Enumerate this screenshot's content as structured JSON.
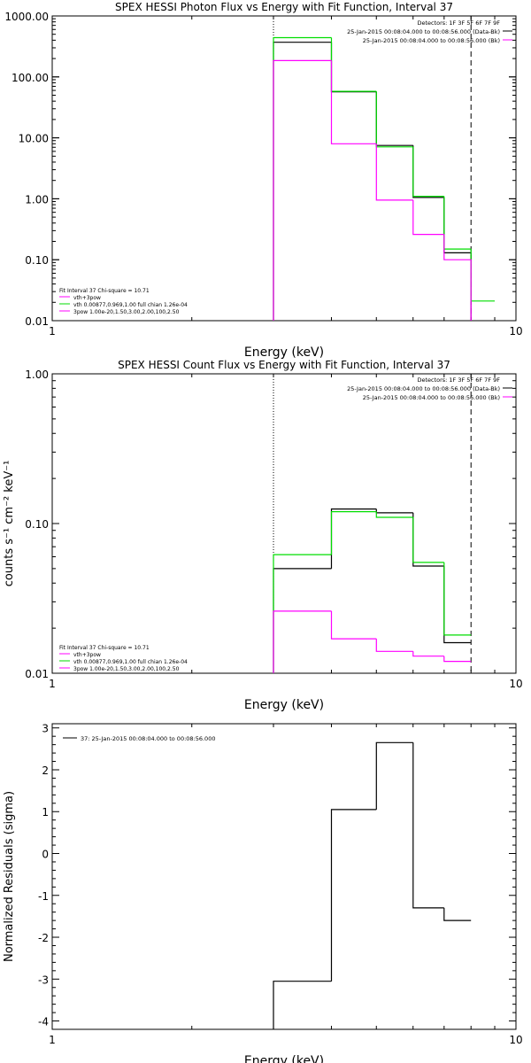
{
  "colors": {
    "data": "#000000",
    "fit_total": "#00dd00",
    "fit_component": "#ff00ff"
  },
  "chart_data": [
    {
      "type": "line",
      "title": "SPEX HESSI Photon Flux vs Energy with Fit Function, Interval 37",
      "xlabel": "Energy (keV)",
      "ylabel": "",
      "xscale": "log",
      "yscale": "log",
      "xlim": [
        1,
        10
      ],
      "ylim": [
        0.01,
        1000
      ],
      "xticks": [
        {
          "v": 1,
          "label": "1"
        },
        {
          "v": 10,
          "label": "10"
        }
      ],
      "yticks": [
        {
          "v": 0.01,
          "label": "0.01"
        },
        {
          "v": 0.1,
          "label": "0.10"
        },
        {
          "v": 1,
          "label": "1.00"
        },
        {
          "v": 10,
          "label": "10.00"
        },
        {
          "v": 100,
          "label": "100.00"
        },
        {
          "v": 1000,
          "label": "1000.00"
        }
      ],
      "vlines": [
        {
          "x": 3.0,
          "style": "dotted"
        },
        {
          "x": 8.0,
          "style": "dashed"
        }
      ],
      "legend_top": [
        {
          "text": "Detectors: 1F 3F 5F 6F 7F 9F",
          "color": ""
        },
        {
          "text": "25-Jan-2015 00:08:04.000 to 00:08:56.000 (Data-Bk)",
          "color": "#000000"
        },
        {
          "text": "25-Jan-2015 00:08:04.000 to 00:08:56.000 (Bk)",
          "color": "#ff00ff"
        }
      ],
      "legend_bottom": [
        {
          "text": "Fit Interval 37   Chi-square = 10.71",
          "color": ""
        },
        {
          "text": "vth+3pow",
          "color": "#ff00ff"
        },
        {
          "text": "vth 0.00877,0.969,1.00  full chian 1.26e-04",
          "color": "#00dd00"
        },
        {
          "text": "3pow 1.00e-20,1.50,3.00,2.00,100,2.50",
          "color": "#ff00ff"
        }
      ],
      "bin_edges": [
        3.0,
        4.0,
        5.0,
        6.0,
        7.0,
        8.0,
        9.0
      ],
      "series": [
        {
          "color": "#000000",
          "values": [
            370,
            57,
            7.5,
            1.05,
            0.13,
            null
          ]
        },
        {
          "color": "#00dd00",
          "values": [
            440,
            58,
            7.1,
            1.1,
            0.15,
            0.021
          ]
        },
        {
          "color": "#ff00ff",
          "values": [
            185,
            8.0,
            0.95,
            0.26,
            0.1,
            null
          ]
        }
      ]
    },
    {
      "type": "line",
      "title": "SPEX HESSI Count Flux vs Energy with Fit Function, Interval 37",
      "xlabel": "Energy (keV)",
      "ylabel": "counts s⁻¹ cm⁻² keV⁻¹",
      "xscale": "log",
      "yscale": "log",
      "xlim": [
        1,
        10
      ],
      "ylim": [
        0.01,
        1.0
      ],
      "xticks": [
        {
          "v": 1,
          "label": "1"
        },
        {
          "v": 10,
          "label": "10"
        }
      ],
      "yticks": [
        {
          "v": 0.01,
          "label": "0.01"
        },
        {
          "v": 0.1,
          "label": "0.10"
        },
        {
          "v": 1,
          "label": "1.00"
        }
      ],
      "vlines": [
        {
          "x": 3.0,
          "style": "dotted"
        },
        {
          "x": 8.0,
          "style": "dashed"
        }
      ],
      "legend_top": [
        {
          "text": "Detectors: 1F 3F 5F 6F 7F 9F",
          "color": ""
        },
        {
          "text": "25-Jan-2015 00:08:04.000 to 00:08:56.000 (Data-Bk)",
          "color": "#000000"
        },
        {
          "text": "25-Jan-2015 00:08:04.000 to 00:08:56.000 (Bk)",
          "color": "#ff00ff"
        }
      ],
      "legend_bottom": [
        {
          "text": "Fit Interval 37   Chi-square = 10.71",
          "color": ""
        },
        {
          "text": "vth+3pow",
          "color": "#ff00ff"
        },
        {
          "text": "vth 0.00877,0.969,1.00  full chian 1.26e-04",
          "color": "#00dd00"
        },
        {
          "text": "3pow 1.00e-20,1.50,3.00,2.00,100,2.50",
          "color": "#ff00ff"
        }
      ],
      "bin_edges": [
        3.0,
        4.0,
        5.0,
        6.0,
        7.0,
        8.0
      ],
      "series": [
        {
          "color": "#000000",
          "values": [
            0.05,
            0.125,
            0.118,
            0.052,
            0.016
          ]
        },
        {
          "color": "#00dd00",
          "values": [
            0.062,
            0.12,
            0.11,
            0.055,
            0.018
          ]
        },
        {
          "color": "#ff00ff",
          "values": [
            0.026,
            0.017,
            0.014,
            0.013,
            0.012
          ]
        }
      ]
    },
    {
      "type": "line",
      "title": "",
      "xlabel": "Energy (keV)",
      "ylabel": "Normalized Residuals (sigma)",
      "xscale": "log",
      "yscale": "linear",
      "xlim": [
        1,
        10
      ],
      "ylim": [
        -4.2,
        3.1
      ],
      "xticks": [
        {
          "v": 1,
          "label": "1"
        },
        {
          "v": 10,
          "label": "10"
        }
      ],
      "yticks": [
        {
          "v": 3,
          "label": "3"
        },
        {
          "v": 2,
          "label": "2"
        },
        {
          "v": 1,
          "label": "1"
        },
        {
          "v": 0,
          "label": "0"
        },
        {
          "v": -1,
          "label": "-1"
        },
        {
          "v": -2,
          "label": "-2"
        },
        {
          "v": -3,
          "label": "-3"
        },
        {
          "v": -4,
          "label": "-4"
        }
      ],
      "vlines": [],
      "legend_top": [
        {
          "text": "37: 25-Jan-2015 00:08:04.000 to 00:08:56.000",
          "color": "#000000"
        }
      ],
      "legend_bottom": [],
      "bin_edges": [
        3.0,
        4.0,
        5.0,
        6.0,
        7.0,
        8.0
      ],
      "series": [
        {
          "color": "#000000",
          "values": [
            -3.05,
            1.05,
            2.65,
            -1.3,
            -1.6
          ]
        }
      ]
    }
  ]
}
